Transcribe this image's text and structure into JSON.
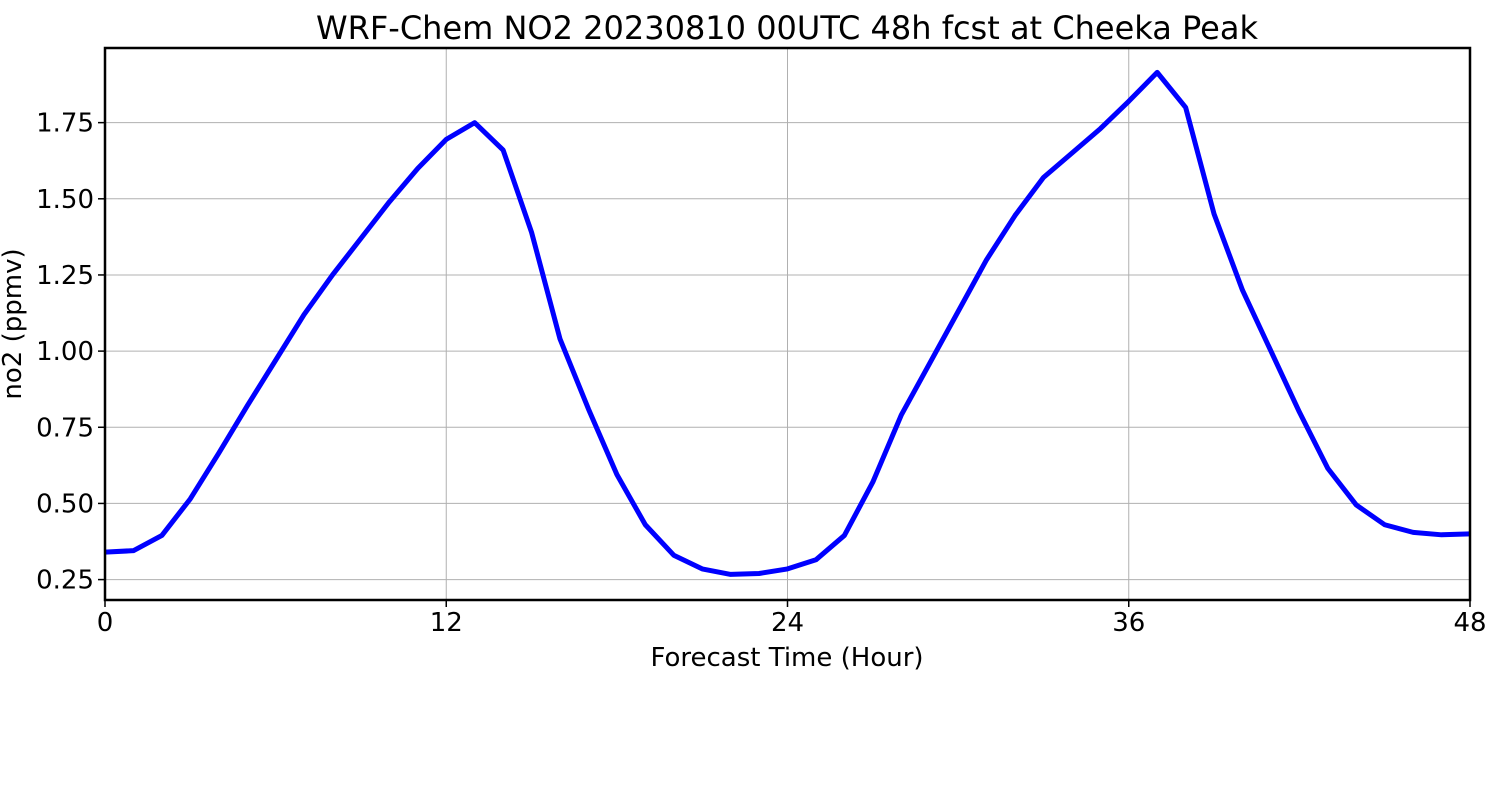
{
  "chart_data": {
    "type": "line",
    "title": "WRF-Chem NO2  20230810 00UTC 48h fcst at Cheeka Peak",
    "xlabel": "Forecast Time (Hour)",
    "ylabel": "no2  (ppmv)",
    "xlim": [
      0,
      48
    ],
    "ylim": [
      0.183,
      1.995
    ],
    "xticks": [
      0,
      12,
      24,
      36,
      48
    ],
    "xtick_labels": [
      "0",
      "12",
      "24",
      "36",
      "48"
    ],
    "yticks": [
      0.25,
      0.5,
      0.75,
      1.0,
      1.25,
      1.5,
      1.75
    ],
    "ytick_labels": [
      "0.25",
      "0.50",
      "0.75",
      "1.00",
      "1.25",
      "1.50",
      "1.75"
    ],
    "grid": true,
    "line_color": "#0000ff",
    "series": [
      {
        "x": [
          0,
          1,
          2,
          3,
          4,
          5,
          6,
          7,
          8,
          9,
          10,
          11,
          12,
          13,
          14,
          15,
          16,
          17,
          18,
          19,
          20,
          21,
          22,
          23,
          24,
          25,
          26,
          27,
          28,
          29,
          30,
          31,
          32,
          33,
          34,
          35,
          36,
          37,
          38,
          39,
          40,
          41,
          42,
          43,
          44,
          45,
          46,
          47,
          48
        ],
        "values": [
          0.34,
          0.345,
          0.395,
          0.515,
          0.665,
          0.82,
          0.97,
          1.12,
          1.25,
          1.37,
          1.49,
          1.6,
          1.695,
          1.75,
          1.66,
          1.39,
          1.04,
          0.81,
          0.595,
          0.43,
          0.33,
          0.285,
          0.267,
          0.27,
          0.285,
          0.315,
          0.395,
          0.57,
          0.79,
          0.96,
          1.13,
          1.3,
          1.445,
          1.57,
          1.65,
          1.73,
          1.82,
          1.915,
          1.8,
          1.45,
          1.2,
          1.0,
          0.8,
          0.615,
          0.495,
          0.43,
          0.405,
          0.397,
          0.4
        ]
      }
    ]
  }
}
